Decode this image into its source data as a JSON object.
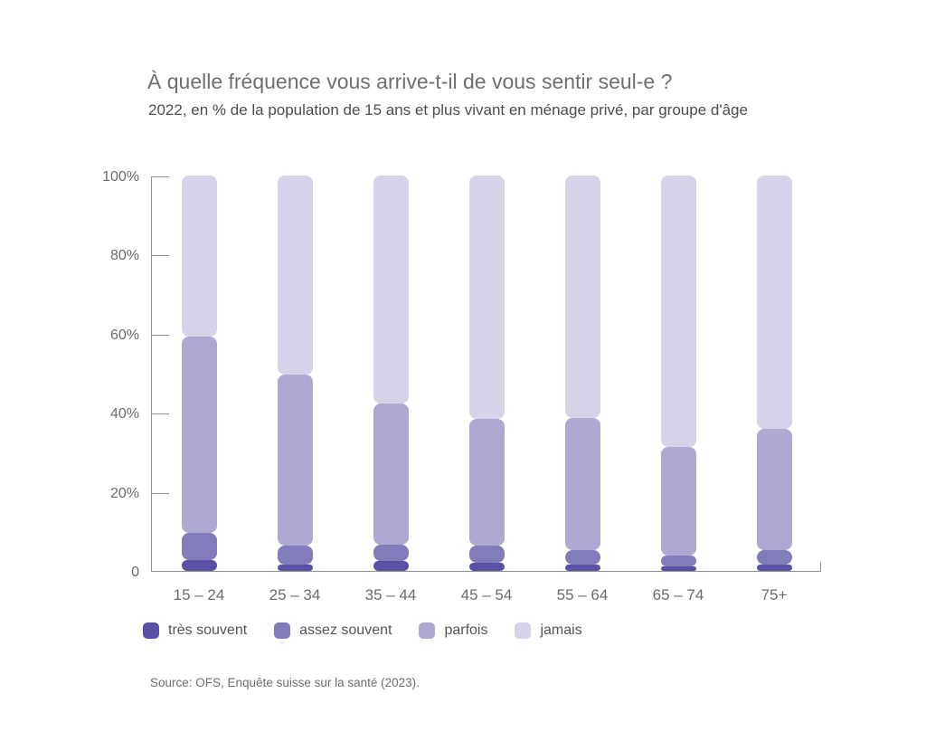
{
  "title": "À quelle fréquence vous arrive-t-il de vous sentir seul-e ?",
  "subtitle": "2022, en % de la population de 15 ans et plus vivant en ménage privé, par groupe d'âge",
  "source": "Source: OFS, Enquête suisse sur la santé (2023).",
  "chart_data": {
    "type": "bar",
    "stacked": true,
    "title": "À quelle fréquence vous arrive-t-il de vous sentir seul-e ?",
    "subtitle": "2022, en % de la population de 15 ans et plus vivant en ménage privé, par groupe d'âge",
    "xlabel": "",
    "ylabel": "",
    "ylim": [
      0,
      100
    ],
    "grid": false,
    "legend_position": "bottom",
    "categories": [
      "15 – 24",
      "25 – 34",
      "35 – 44",
      "45 – 54",
      "55 – 64",
      "65 – 74",
      "75+"
    ],
    "series": [
      {
        "name": "très souvent",
        "color": "#5a51a5",
        "values": [
          2.7,
          1.5,
          2.5,
          2.1,
          1.5,
          1.1,
          1.5
        ]
      },
      {
        "name": "assez souvent",
        "color": "#837cba",
        "values": [
          7.0,
          4.8,
          4.1,
          4.2,
          3.7,
          2.8,
          3.8
        ]
      },
      {
        "name": "parfois",
        "color": "#aea8d2",
        "values": [
          49.6,
          43.3,
          35.8,
          32.1,
          33.4,
          27.4,
          30.6
        ]
      },
      {
        "name": "jamais",
        "color": "#d6d3e8",
        "values": [
          40.7,
          50.4,
          57.6,
          61.6,
          61.4,
          68.7,
          64.1
        ]
      }
    ],
    "yticks": [
      {
        "value": 0,
        "label": "0"
      },
      {
        "value": 20,
        "label": "20%"
      },
      {
        "value": 40,
        "label": "40%"
      },
      {
        "value": 60,
        "label": "60%"
      },
      {
        "value": 80,
        "label": "80%"
      },
      {
        "value": 100,
        "label": "100%"
      }
    ]
  }
}
